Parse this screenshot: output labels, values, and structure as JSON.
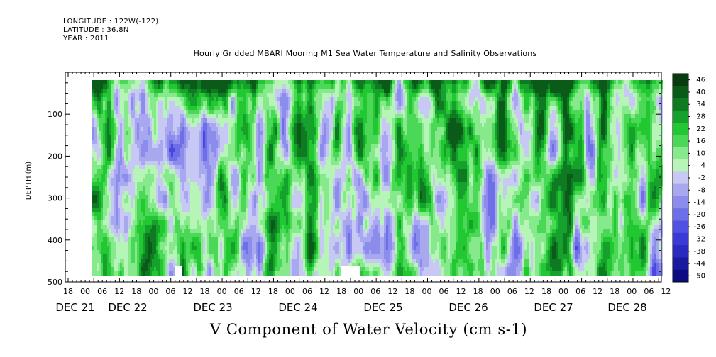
{
  "header": {
    "longitude": "LONGITUDE : 122W(-122)",
    "latitude": "LATITUDE : 36.8N",
    "year": "YEAR : 2011"
  },
  "chart_data": {
    "type": "heatmap",
    "title": "Hourly Gridded MBARI Mooring M1 Sea Water Temperature and Salinity Observations",
    "xlabel": "V Component of Water Velocity (cm s-1)",
    "ylabel": "DEPTH (m)",
    "y_axis": {
      "range": [
        500,
        0
      ],
      "ticks": [
        100,
        200,
        300,
        400,
        500
      ],
      "inverted": true
    },
    "x_axis": {
      "hour_ticks": [
        "18",
        "00",
        "06",
        "12",
        "18",
        "00",
        "06",
        "12",
        "18",
        "00",
        "06",
        "12",
        "18",
        "00",
        "06",
        "12",
        "18",
        "00",
        "06",
        "12",
        "18",
        "00",
        "06",
        "12",
        "18",
        "00",
        "06",
        "12",
        "18",
        "00",
        "06",
        "12",
        "18",
        "00",
        "06",
        "12"
      ],
      "day_labels": [
        "DEC 21",
        "DEC 22",
        "DEC 23",
        "DEC 24",
        "DEC 25",
        "DEC 26",
        "DEC 27",
        "DEC 28"
      ]
    },
    "colorbar": {
      "labels": [
        "46",
        "40",
        "34",
        "28",
        "22",
        "16",
        "10",
        "4",
        "-2",
        "-8",
        "-14",
        "-20",
        "-26",
        "-32",
        "-38",
        "-44",
        "-50"
      ],
      "range": [
        -50,
        50
      ]
    },
    "colors": {
      "positive_strong": "#0a6e1e",
      "positive_mid": "#22c832",
      "positive_light": "#9aeea0",
      "negative_light": "#b4b4f0",
      "negative_mid": "#8484ee",
      "negative_strong": "#3a3ae6"
    }
  }
}
